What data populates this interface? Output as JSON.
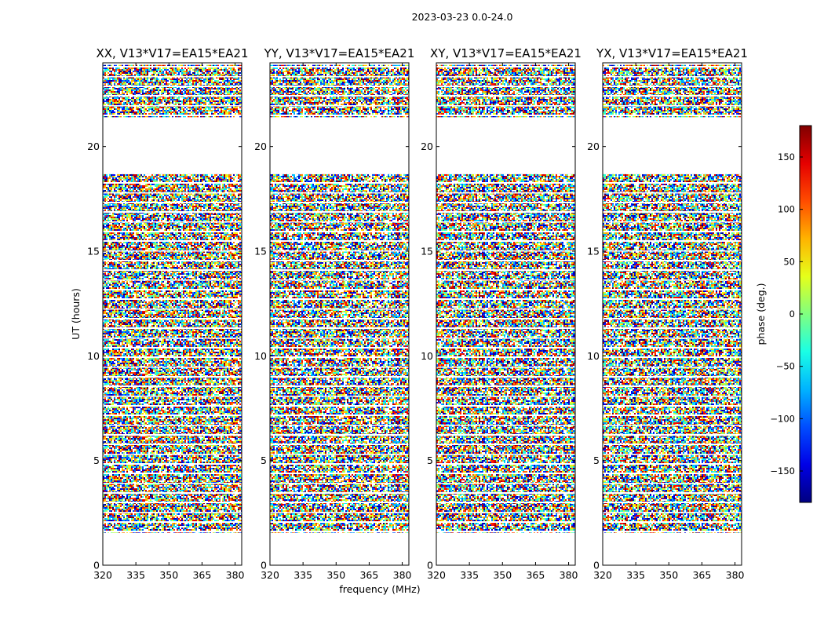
{
  "figure": {
    "suptitle": "2023-03-23 0.0-24.0",
    "ylabel": "UT (hours)",
    "xlabel": "frequency (MHz)"
  },
  "chart_data": {
    "type": "heatmap",
    "title": "2023-03-23 0.0-24.0",
    "xlabel": "frequency (MHz)",
    "ylabel": "UT (hours)",
    "xlim": [
      320,
      383
    ],
    "ylim": [
      0,
      24
    ],
    "x_ticks": [
      320,
      335,
      350,
      365,
      380
    ],
    "y_ticks": [
      0,
      5,
      10,
      15,
      20
    ],
    "panels": [
      {
        "name": "XX",
        "title": "XX, V13*V17=EA15*EA21"
      },
      {
        "name": "YY",
        "title": "YY, V13*V17=EA15*EA21"
      },
      {
        "name": "XY",
        "title": "XY, V13*V17=EA15*EA21"
      },
      {
        "name": "YX",
        "title": "YX, V13*V17=EA15*EA21"
      }
    ],
    "data_coverage_hours": [
      [
        1.55,
        3.7
      ],
      [
        3.7,
        6.5
      ],
      [
        6.5,
        8.8
      ],
      [
        8.8,
        14.7
      ],
      [
        14.7,
        18.7
      ],
      [
        21.4,
        23.9
      ]
    ],
    "colorbar": {
      "label": "phase (deg.)",
      "range": [
        -180,
        180
      ],
      "ticks": [
        150,
        100,
        50,
        0,
        -50,
        -100,
        -150
      ],
      "tick_labels": [
        "150",
        "100",
        "50",
        "0",
        "−50",
        "−100",
        "−150"
      ],
      "colormap": "jet"
    }
  }
}
